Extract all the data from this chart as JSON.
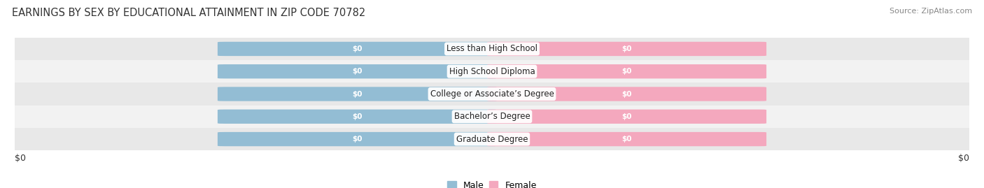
{
  "title": "EARNINGS BY SEX BY EDUCATIONAL ATTAINMENT IN ZIP CODE 70782",
  "source": "Source: ZipAtlas.com",
  "categories": [
    "Less than High School",
    "High School Diploma",
    "College or Associate’s Degree",
    "Bachelor’s Degree",
    "Graduate Degree"
  ],
  "male_values": [
    0,
    0,
    0,
    0,
    0
  ],
  "female_values": [
    0,
    0,
    0,
    0,
    0
  ],
  "male_color": "#93bdd4",
  "female_color": "#f4a8be",
  "xlabel_left": "$0",
  "xlabel_right": "$0",
  "background_color": "#ffffff",
  "title_fontsize": 10.5,
  "source_fontsize": 8,
  "legend_male": "Male",
  "legend_female": "Female",
  "row_bg_color": "#e8e8e8",
  "row_stripe_color": "#f2f2f2",
  "bar_height": 0.6,
  "bar_width": 0.28,
  "label_fontsize": 7.5,
  "cat_fontsize": 8.5
}
